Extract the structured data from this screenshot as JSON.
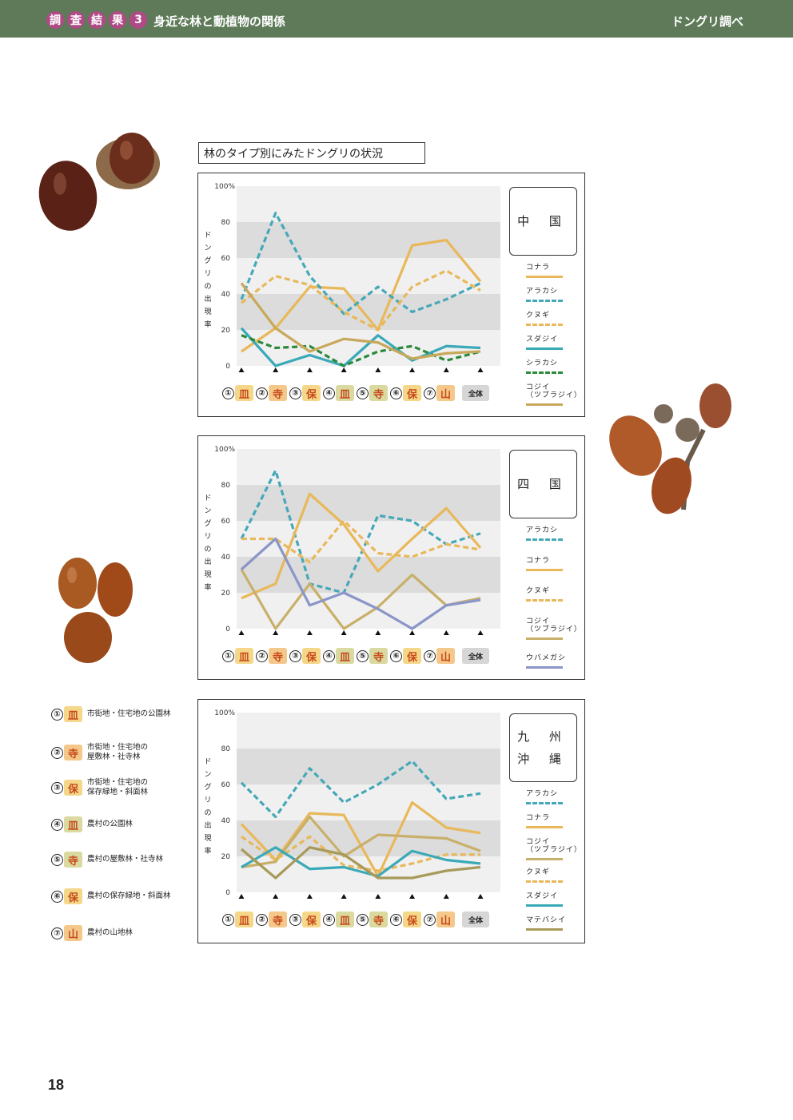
{
  "header": {
    "badges": [
      "調",
      "査",
      "結",
      "果",
      "3"
    ],
    "subtitle": "身近な林と動植物の関係",
    "right_title": "ドングリ調べ"
  },
  "page_number": "18",
  "section_title": "林のタイプ別にみたドングリの状況",
  "category_marks": [
    "①",
    "②",
    "③",
    "④",
    "⑤",
    "⑥",
    "⑦",
    "全体"
  ],
  "category_glyphs": [
    "皿",
    "寺",
    "保",
    "皿",
    "寺",
    "保",
    "山"
  ],
  "category_key": [
    {
      "num": "①",
      "glyph": "皿",
      "label": "市街地・住宅地の公園林"
    },
    {
      "num": "②",
      "glyph": "寺",
      "label": "市街地・住宅地の\n屋敷林・社寺林"
    },
    {
      "num": "③",
      "glyph": "保",
      "label": "市街地・住宅地の\n保存緑地・斜面林"
    },
    {
      "num": "④",
      "glyph": "皿",
      "label": "農村の公園林"
    },
    {
      "num": "⑤",
      "glyph": "寺",
      "label": "農村の屋敷林・社寺林"
    },
    {
      "num": "⑥",
      "glyph": "保",
      "label": "農村の保存緑地・斜面林"
    },
    {
      "num": "⑦",
      "glyph": "山",
      "label": "農村の山地林"
    }
  ],
  "chart_data": [
    {
      "type": "line",
      "region": "中　国",
      "region_lines": [
        "中 国"
      ],
      "ylabel": "ドングリの出現率",
      "ylim": [
        0,
        100
      ],
      "yticks": [
        "0",
        "20",
        "40",
        "60",
        "80",
        "100%"
      ],
      "categories": [
        "①",
        "②",
        "③",
        "④",
        "⑤",
        "⑥",
        "⑦",
        "全体"
      ],
      "series": [
        {
          "name": "コナラ",
          "color": "#e8b85a",
          "dash": false,
          "values": [
            8,
            21,
            44,
            43,
            20,
            67,
            70,
            47
          ]
        },
        {
          "name": "アラカシ",
          "color": "#45a8b8",
          "dash": true,
          "values": [
            37,
            85,
            50,
            29,
            44,
            30,
            37,
            46
          ]
        },
        {
          "name": "クヌギ",
          "color": "#e8b85a",
          "dash": true,
          "values": [
            35,
            50,
            45,
            30,
            20,
            44,
            53,
            42
          ]
        },
        {
          "name": "スダジイ",
          "color": "#3aa9b8",
          "dash": false,
          "values": [
            21,
            0,
            6,
            0,
            17,
            3,
            11,
            10
          ]
        },
        {
          "name": "シラカシ",
          "color": "#2a8a3a",
          "dash": true,
          "values": [
            17,
            10,
            11,
            0,
            8,
            11,
            3,
            8
          ]
        },
        {
          "name": "コジイ\n（ツブラジイ）",
          "color": "#c8a85a",
          "dash": false,
          "values": [
            46,
            21,
            8,
            15,
            13,
            4,
            7,
            8
          ]
        }
      ]
    },
    {
      "type": "line",
      "region": "四　国",
      "region_lines": [
        "四 国"
      ],
      "ylabel": "ドングリの出現率",
      "ylim": [
        0,
        100
      ],
      "yticks": [
        "0",
        "20",
        "40",
        "60",
        "80",
        "100%"
      ],
      "categories": [
        "①",
        "②",
        "③",
        "④",
        "⑤",
        "⑥",
        "⑦",
        "全体"
      ],
      "series": [
        {
          "name": "アラカシ",
          "color": "#45a8b8",
          "dash": true,
          "values": [
            50,
            88,
            25,
            20,
            63,
            60,
            47,
            53
          ]
        },
        {
          "name": "コナラ",
          "color": "#e8b85a",
          "dash": false,
          "values": [
            17,
            25,
            75,
            58,
            32,
            50,
            67,
            45
          ]
        },
        {
          "name": "クヌギ",
          "color": "#e8b85a",
          "dash": true,
          "values": [
            50,
            50,
            37,
            60,
            42,
            40,
            47,
            44
          ]
        },
        {
          "name": "コジイ\n（ツブラジイ）",
          "color": "#c8b06a",
          "dash": false,
          "values": [
            33,
            0,
            25,
            0,
            12,
            30,
            13,
            17
          ]
        },
        {
          "name": "ウバメガシ",
          "color": "#8a96c8",
          "dash": false,
          "values": [
            33,
            50,
            13,
            20,
            11,
            0,
            13,
            16
          ]
        }
      ]
    },
    {
      "type": "line",
      "region": "九州沖縄",
      "region_lines": [
        "九 州",
        "沖 縄"
      ],
      "ylabel": "ドングリの出現率",
      "ylim": [
        0,
        100
      ],
      "yticks": [
        "0",
        "20",
        "40",
        "60",
        "80",
        "100%"
      ],
      "categories": [
        "①",
        "②",
        "③",
        "④",
        "⑤",
        "⑥",
        "⑦",
        "全体"
      ],
      "series": [
        {
          "name": "アラカシ",
          "color": "#45a8b8",
          "dash": true,
          "values": [
            61,
            42,
            69,
            50,
            60,
            73,
            52,
            55
          ]
        },
        {
          "name": "コナラ",
          "color": "#e8b85a",
          "dash": false,
          "values": [
            38,
            18,
            44,
            43,
            9,
            50,
            36,
            33
          ]
        },
        {
          "name": "コジイ\n（ツブラジイ）",
          "color": "#c8b06a",
          "dash": false,
          "values": [
            14,
            17,
            42,
            20,
            32,
            31,
            30,
            23
          ]
        },
        {
          "name": "クヌギ",
          "color": "#e8b85a",
          "dash": true,
          "values": [
            31,
            18,
            31,
            15,
            12,
            16,
            21,
            21
          ]
        },
        {
          "name": "スダジイ",
          "color": "#3aa9b8",
          "dash": false,
          "values": [
            14,
            25,
            13,
            14,
            9,
            23,
            18,
            16
          ]
        },
        {
          "name": "マテバシイ",
          "color": "#a89a5a",
          "dash": false,
          "values": [
            24,
            8,
            25,
            21,
            8,
            8,
            12,
            14
          ]
        }
      ]
    }
  ]
}
